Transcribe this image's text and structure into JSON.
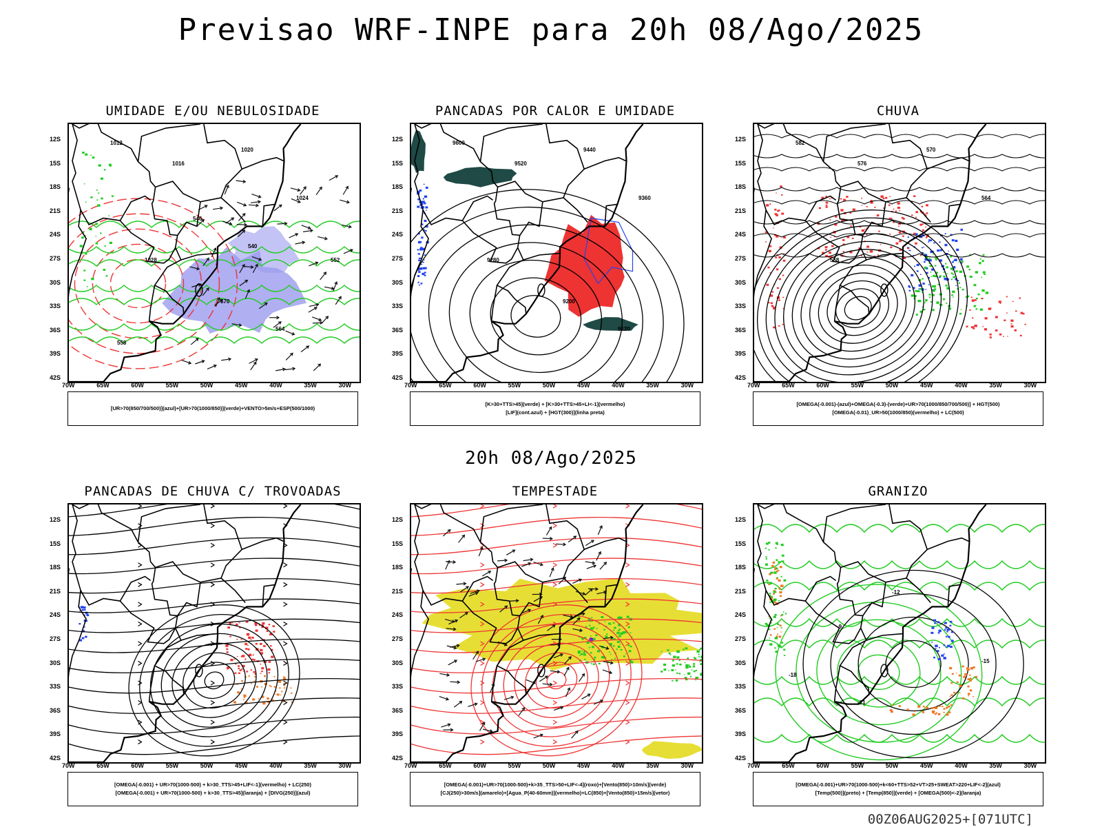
{
  "header": {
    "title": "Previsao WRF-INPE  para 20h 08/Ago/2025",
    "mid_time": "20h 08/Ago/2025",
    "run_info": "00Z06AUG2025+[071UTC]"
  },
  "axes": {
    "lat_labels": [
      "12S",
      "15S",
      "18S",
      "21S",
      "24S",
      "27S",
      "30S",
      "33S",
      "36S",
      "39S",
      "42S"
    ],
    "lon_labels": [
      "70W",
      "65W",
      "60W",
      "55W",
      "50W",
      "45W",
      "40W",
      "35W",
      "30W"
    ]
  },
  "colors": {
    "green": "#22cc22",
    "red": "#ee3333",
    "blue": "#2244ee",
    "lavender": "#9b9bef",
    "dark_teal": "#1f4a45",
    "yellow": "#e6dc2a",
    "orange": "#ee7722",
    "purple": "#8822cc"
  },
  "panels": [
    {
      "id": "umidade",
      "title": "UMIDADE E/OU NEBULOSIDADE",
      "legend": [
        "[UR>70(850/700/500)](azul)+[UR>70(1000/850)](verde)+VENTO>5m/s+ESP(500/1000)"
      ],
      "contour_labels": [
        "1012",
        "1016",
        "1020",
        "1024",
        "1028",
        "570",
        "564",
        "558",
        "552",
        "546",
        "540"
      ]
    },
    {
      "id": "pancadas_calor",
      "title": "PANCADAS POR CALOR E UMIDADE",
      "legend": [
        "[K>30+TTS>45](verde) + [K>30+TTS>45+LI<-1](vermelho)",
        "[LIF](cont.azul) + [HGT(300)](linha preta)"
      ],
      "contour_labels": [
        "9600",
        "9520",
        "9440",
        "9360",
        "9280",
        "9200",
        "9120"
      ]
    },
    {
      "id": "chuva",
      "title": "CHUVA",
      "legend": [
        "[OMEGA(-0.001)-(azul)+OMEGA(-0.3)-(verde)+UR>70(1000/850/700/500)] + HGT(500)",
        "[OMEGA(-0.01)_UR>50(1000/850)(vermelho) + LC(500)"
      ],
      "contour_labels": [
        "582",
        "576",
        "570",
        "564",
        "558"
      ]
    },
    {
      "id": "pancadas_trovoadas",
      "title": "PANCADAS DE CHUVA C/ TROVOADAS",
      "legend": [
        "[OMEGA(-0.001) + UR>70(1000-500) + k>30_TTS>45+LIF<-1](vermelho) + LC(250)",
        "[OMEGA(-0.001) + UR>70(1000-500) + k>30_TTS>45](laranja) + [DIVG(250)](azul)"
      ],
      "contour_labels": []
    },
    {
      "id": "tempestade",
      "title": "TEMPESTADE",
      "legend": [
        "[OMEGA(-0.001)+UR>70(1000-500)+k>35_TTS>50+LIF<-4](roxo)+[Vento(850)>10m/s](verde)",
        "[CJ(250)>30m/s](amarelo)+[Agua_P(40-60mm)](vermelho)+LC(850)+[Vento(850)>15m/s](vetor)"
      ],
      "contour_labels": []
    },
    {
      "id": "granizo",
      "title": "GRANIZO",
      "legend": [
        "[OMEGA(-0.001)+UR>70(1000-500)+k<60+TTS>52+VT>25+SWEAT>220+LIF<-2](azul)",
        "[Temp(500)](preto) + [Temp(850)](verde) + [OMEGA(500)<-2](laranja)"
      ],
      "contour_labels": [
        "-9",
        "-12",
        "-15",
        "-18",
        "-21"
      ]
    }
  ]
}
